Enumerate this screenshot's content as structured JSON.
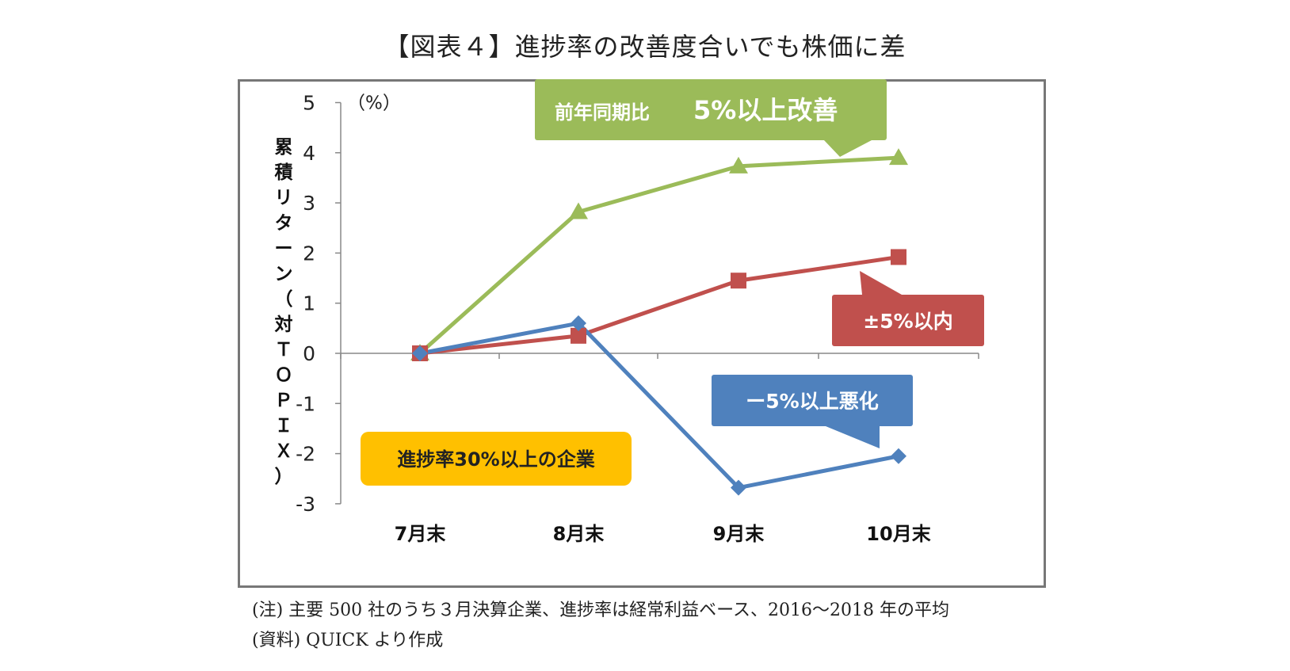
{
  "title": "【図表４】進捗率の改善度合いでも株価に差",
  "notes": {
    "note1": "(注) 主要 500 社のうち３月決算企業、進捗率は経常利益ベース、2016～2018 年の平均",
    "note2": "(資料) QUICK より作成"
  },
  "chart_data": {
    "type": "line",
    "categories": [
      "7月末",
      "8月末",
      "9月末",
      "10月末"
    ],
    "ylabel": "累積リターン（対ＴＯＰＩＸ）",
    "yunit": "（%）",
    "ylim": [
      -3,
      5
    ],
    "yticks": [
      "5",
      "4",
      "3",
      "2",
      "1",
      "0",
      "-1",
      "-2",
      "-3"
    ],
    "series": [
      {
        "name": "前年同期比　5%以上改善",
        "color": "#9BBB59",
        "marker": "triangle",
        "values": [
          0,
          2.82,
          3.73,
          3.9
        ]
      },
      {
        "name": "±5%以内",
        "color": "#C0504D",
        "marker": "square",
        "values": [
          0,
          0.35,
          1.45,
          1.92
        ]
      },
      {
        "name": "ー5%以上悪化",
        "color": "#4F81BD",
        "marker": "diamond",
        "values": [
          0,
          0.6,
          -2.68,
          -2.05
        ]
      }
    ],
    "callouts": {
      "improve_prefix": "前年同期比",
      "improve_main": "5%以上改善",
      "within": "±5%以内",
      "worse": "ー5%以上悪化",
      "group": "進捗率30%以上の企業"
    }
  }
}
